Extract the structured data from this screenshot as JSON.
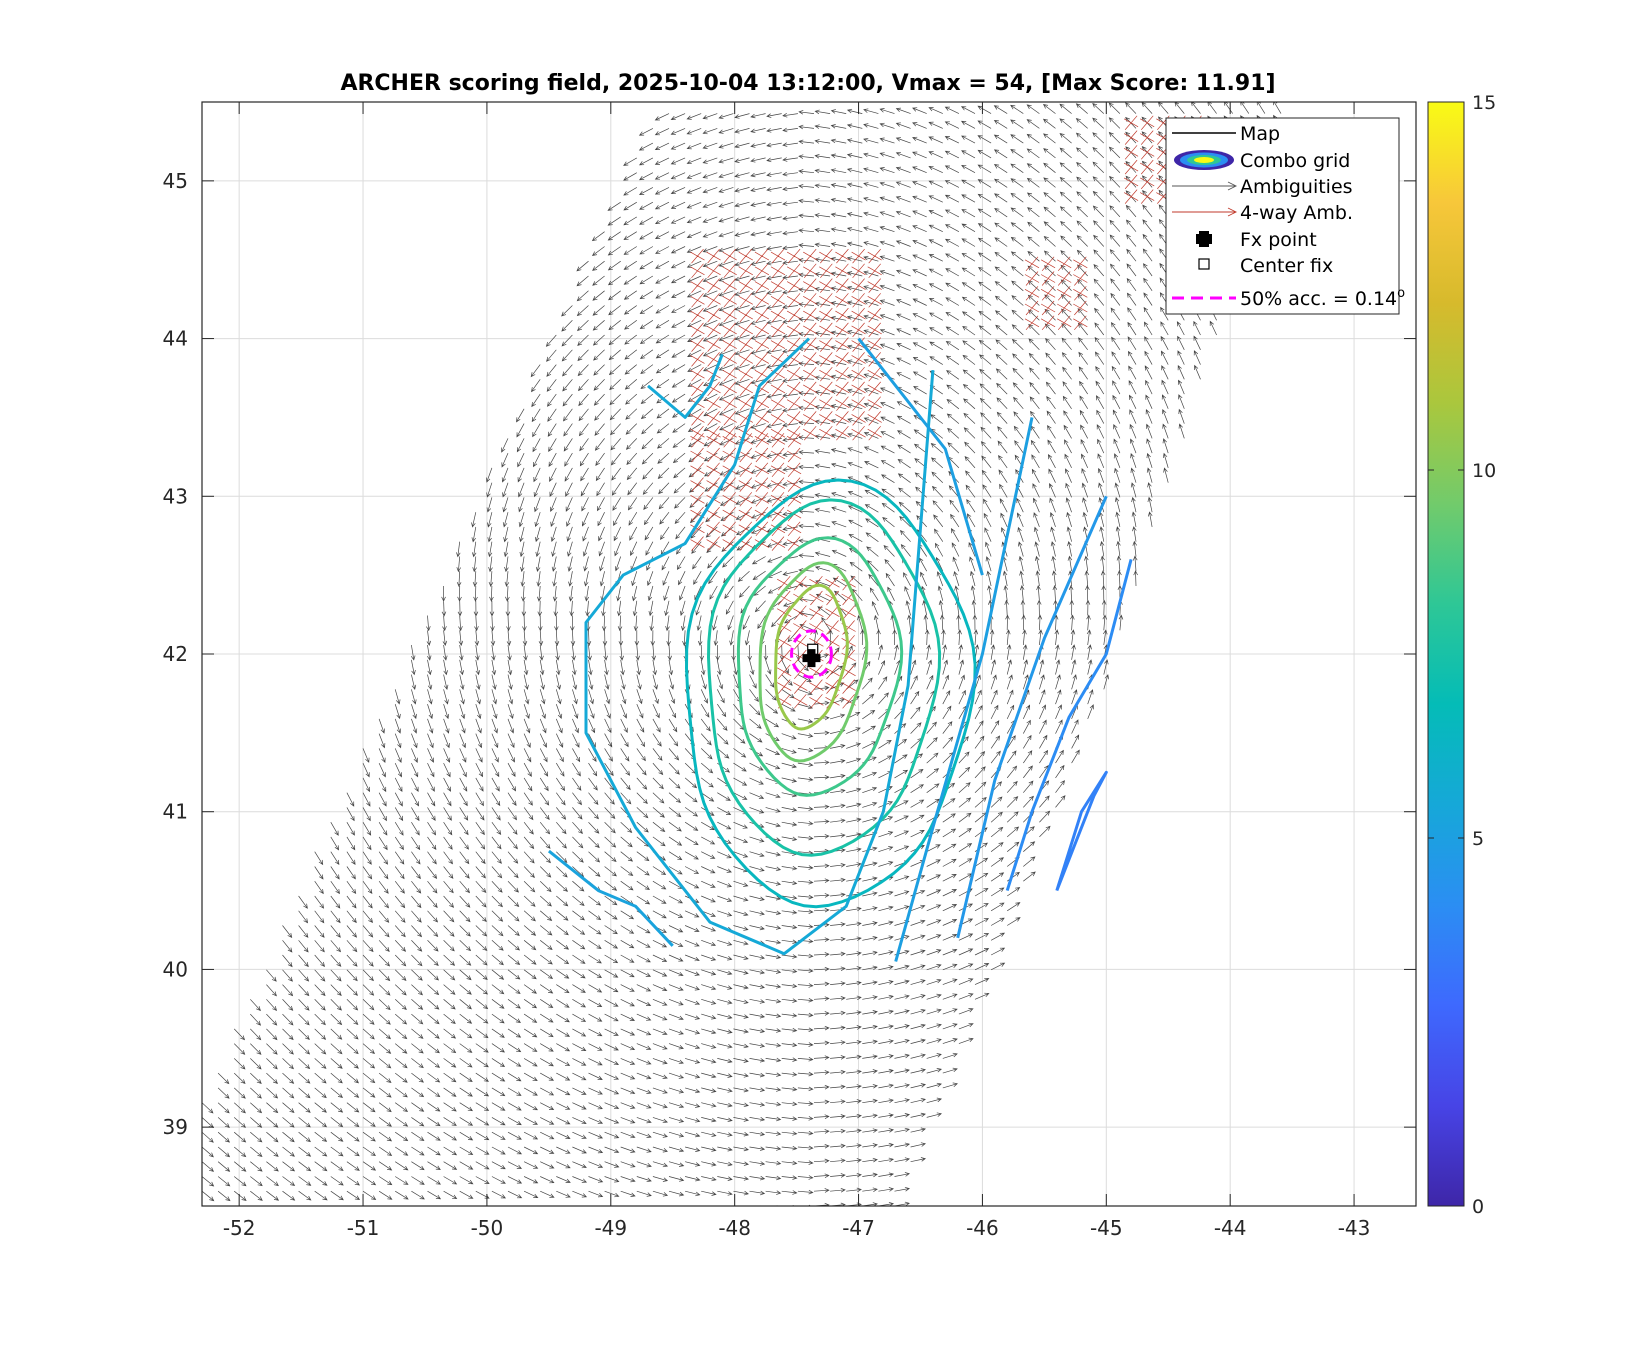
{
  "chart_data": {
    "type": "scatter",
    "subtype": "wind-vector field with scoring contours",
    "title": "ARCHER scoring field, 2025-10-04 13:12:00, Vmax = 54, [Max Score: 11.91]",
    "xlim": [
      -52.3,
      -42.5
    ],
    "ylim": [
      38.5,
      45.5
    ],
    "x_ticks": [
      -52,
      -51,
      -50,
      -49,
      -48,
      -47,
      -46,
      -45,
      -44,
      -43
    ],
    "y_ticks": [
      39,
      40,
      41,
      42,
      43,
      44,
      45
    ],
    "x_tick_labels": [
      "-52",
      "-51",
      "-50",
      "-49",
      "-48",
      "-47",
      "-46",
      "-45",
      "-44",
      "-43"
    ],
    "y_tick_labels": [
      "39",
      "40",
      "41",
      "42",
      "43",
      "44",
      "45"
    ],
    "grid": true,
    "colorbar": {
      "range": [
        0,
        15
      ],
      "ticks": [
        0,
        5,
        10,
        15
      ],
      "tick_labels": [
        "0",
        "5",
        "10",
        "15"
      ],
      "colormap": [
        "#3e26a8",
        "#4744e6",
        "#3e69fe",
        "#2b8ef3",
        "#16a8d8",
        "#04bcb7",
        "#2ec796",
        "#72cb6b",
        "#aac73d",
        "#d7ba2c",
        "#f7c73a",
        "#f9fb15"
      ]
    },
    "storm_center": {
      "lon": -47.38,
      "lat": 42.0
    },
    "fx_point": {
      "lon": -47.38,
      "lat": 41.98
    },
    "center_fix": {
      "lon": -47.37,
      "lat": 42.03
    },
    "accuracy_radius_deg": 0.14,
    "swath": {
      "corners": [
        [
          -48.6,
          45.5
        ],
        [
          -43.5,
          45.5
        ],
        [
          -45.0,
          41.8
        ],
        [
          -46.7,
          38.5
        ],
        [
          -52.3,
          38.5
        ],
        [
          -52.3,
          39.2
        ]
      ]
    },
    "ambiguity_4way_regions": [
      {
        "lon_range": [
          -48.3,
          -46.8
        ],
        "lat_range": [
          43.4,
          44.6
        ]
      },
      {
        "lon_range": [
          -48.3,
          -47.4
        ],
        "lat_range": [
          42.7,
          43.4
        ]
      },
      {
        "lon_range": [
          -47.6,
          -47.0
        ],
        "lat_range": [
          41.7,
          42.5
        ]
      },
      {
        "lon_range": [
          -44.8,
          -44.2
        ],
        "lat_range": [
          44.9,
          45.4
        ]
      },
      {
        "lon_range": [
          -45.6,
          -45.2
        ],
        "lat_range": [
          44.1,
          44.5
        ]
      }
    ],
    "contours": [
      {
        "level": 10.5,
        "shape": "ellipse",
        "center": [
          -47.39,
          41.98
        ],
        "semi_axes_deg": [
          0.28,
          0.45
        ],
        "tilt_deg": -12
      },
      {
        "level": 9.5,
        "shape": "ellipse",
        "center": [
          -47.38,
          41.95
        ],
        "semi_axes_deg": [
          0.42,
          0.62
        ],
        "tilt_deg": -12
      },
      {
        "level": 8.5,
        "shape": "ellipse",
        "center": [
          -47.33,
          41.92
        ],
        "semi_axes_deg": [
          0.65,
          0.8
        ],
        "tilt_deg": -10
      },
      {
        "level": 7.5,
        "shape": "ellipse",
        "center": [
          -47.3,
          41.85
        ],
        "semi_axes_deg": [
          0.92,
          1.1
        ],
        "tilt_deg": -8
      },
      {
        "level": 6.5,
        "shape": "ellipse",
        "center": [
          -47.25,
          41.75
        ],
        "semi_axes_deg": [
          1.15,
          1.32
        ],
        "tilt_deg": -8
      },
      {
        "level": 5.5,
        "shape": "polyline",
        "points": [
          [
            -48.7,
            43.7
          ],
          [
            -48.4,
            43.5
          ],
          [
            -48.2,
            43.7
          ],
          [
            -48.1,
            43.9
          ]
        ]
      },
      {
        "level": 5.5,
        "shape": "polyline",
        "points": [
          [
            -47.4,
            44.0
          ],
          [
            -47.8,
            43.7
          ],
          [
            -48.0,
            43.2
          ],
          [
            -48.4,
            42.7
          ],
          [
            -48.9,
            42.5
          ],
          [
            -49.2,
            42.2
          ],
          [
            -49.2,
            41.5
          ],
          [
            -48.8,
            40.9
          ],
          [
            -48.2,
            40.3
          ],
          [
            -47.6,
            40.1
          ],
          [
            -47.1,
            40.4
          ],
          [
            -46.8,
            41.0
          ],
          [
            -46.6,
            41.8
          ],
          [
            -46.4,
            43.8
          ]
        ]
      },
      {
        "level": 5.2,
        "shape": "polyline",
        "points": [
          [
            -49.5,
            40.75
          ],
          [
            -49.1,
            40.5
          ],
          [
            -48.8,
            40.4
          ],
          [
            -48.5,
            40.15
          ]
        ]
      },
      {
        "level": 5.0,
        "shape": "polyline",
        "points": [
          [
            -47.0,
            44.0
          ],
          [
            -46.3,
            43.3
          ],
          [
            -46.0,
            42.5
          ]
        ]
      },
      {
        "level": 5.0,
        "shape": "polyline",
        "points": [
          [
            -46.7,
            40.05
          ],
          [
            -46.4,
            40.9
          ],
          [
            -46.0,
            42.0
          ],
          [
            -45.6,
            43.5
          ]
        ]
      },
      {
        "level": 4.6,
        "shape": "polyline",
        "points": [
          [
            -46.2,
            40.2
          ],
          [
            -45.9,
            41.2
          ],
          [
            -45.5,
            42.1
          ],
          [
            -45.0,
            43.0
          ]
        ]
      },
      {
        "level": 4.0,
        "shape": "polyline",
        "points": [
          [
            -45.8,
            40.5
          ],
          [
            -45.6,
            41.0
          ],
          [
            -45.3,
            41.6
          ],
          [
            -45.0,
            42.0
          ],
          [
            -44.8,
            42.6
          ]
        ]
      },
      {
        "level": 3.6,
        "shape": "polyline",
        "points": [
          [
            -45.4,
            40.5
          ],
          [
            -45.25,
            40.8
          ],
          [
            -45.1,
            41.1
          ],
          [
            -45.0,
            41.25
          ],
          [
            -45.2,
            41.0
          ],
          [
            -45.4,
            40.5
          ]
        ]
      }
    ]
  },
  "legend": {
    "items": [
      {
        "label": "Map",
        "symbol": "line",
        "color": "#000000"
      },
      {
        "label": "Combo grid",
        "symbol": "ellipse-contour",
        "color": "#3e26a8"
      },
      {
        "label": "Ambiguities",
        "symbol": "thin-arrow",
        "color": "#555555"
      },
      {
        "label": "4-way Amb.",
        "symbol": "thin-arrow",
        "color": "#c0392b"
      },
      {
        "label": "Fx point",
        "symbol": "plus-marker",
        "color": "#000000"
      },
      {
        "label": "Center fix",
        "symbol": "square-marker",
        "color": "#000000"
      },
      {
        "label": "50% acc. = 0.14",
        "superscript": "o",
        "symbol": "dashed-line",
        "color": "#ff00ff"
      }
    ]
  }
}
